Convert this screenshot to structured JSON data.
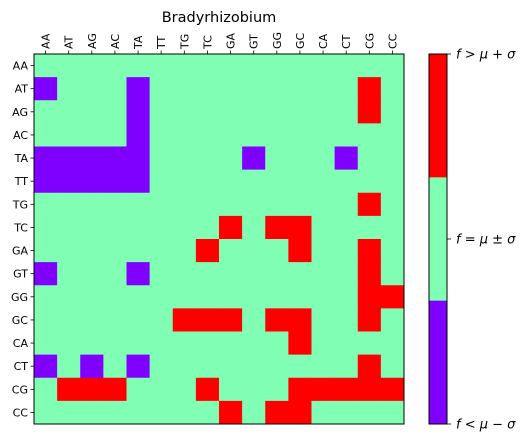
{
  "chart_data": {
    "type": "heatmap",
    "title": "Bradyrhizobium",
    "x_categories": [
      "AA",
      "AT",
      "AG",
      "AC",
      "TA",
      "TT",
      "TG",
      "TC",
      "GA",
      "GT",
      "GG",
      "GC",
      "CA",
      "CT",
      "CG",
      "CC"
    ],
    "y_categories": [
      "AA",
      "AT",
      "AG",
      "AC",
      "TA",
      "TT",
      "TG",
      "TC",
      "GA",
      "GT",
      "GG",
      "GC",
      "CA",
      "CT",
      "CG",
      "CC"
    ],
    "value_levels": [
      -1,
      0,
      1
    ],
    "colors": {
      "-1": "#8000ff",
      "0": "#80ffb4",
      "1": "#ff0000"
    },
    "colorbar": {
      "labels": [
        "f > μ + σ",
        "f = μ ± σ",
        "f < μ − σ"
      ],
      "levels": [
        1,
        0,
        -1
      ]
    },
    "matrix": [
      [
        0,
        0,
        0,
        0,
        0,
        0,
        0,
        0,
        0,
        0,
        0,
        0,
        0,
        0,
        0,
        0
      ],
      [
        -1,
        0,
        0,
        0,
        -1,
        0,
        0,
        0,
        0,
        0,
        0,
        0,
        0,
        0,
        1,
        0
      ],
      [
        0,
        0,
        0,
        0,
        -1,
        0,
        0,
        0,
        0,
        0,
        0,
        0,
        0,
        0,
        1,
        0
      ],
      [
        0,
        0,
        0,
        0,
        -1,
        0,
        0,
        0,
        0,
        0,
        0,
        0,
        0,
        0,
        0,
        0
      ],
      [
        -1,
        -1,
        -1,
        -1,
        -1,
        0,
        0,
        0,
        0,
        -1,
        0,
        0,
        0,
        -1,
        0,
        0
      ],
      [
        -1,
        -1,
        -1,
        -1,
        -1,
        0,
        0,
        0,
        0,
        0,
        0,
        0,
        0,
        0,
        0,
        0
      ],
      [
        0,
        0,
        0,
        0,
        0,
        0,
        0,
        0,
        0,
        0,
        0,
        0,
        0,
        0,
        1,
        0
      ],
      [
        0,
        0,
        0,
        0,
        0,
        0,
        0,
        0,
        1,
        0,
        1,
        1,
        0,
        0,
        0,
        0
      ],
      [
        0,
        0,
        0,
        0,
        0,
        0,
        0,
        1,
        0,
        0,
        0,
        1,
        0,
        0,
        1,
        0
      ],
      [
        -1,
        0,
        0,
        0,
        -1,
        0,
        0,
        0,
        0,
        0,
        0,
        0,
        0,
        0,
        1,
        0
      ],
      [
        0,
        0,
        0,
        0,
        0,
        0,
        0,
        0,
        0,
        0,
        0,
        0,
        0,
        0,
        1,
        1
      ],
      [
        0,
        0,
        0,
        0,
        0,
        0,
        1,
        1,
        1,
        0,
        1,
        1,
        0,
        0,
        1,
        0
      ],
      [
        0,
        0,
        0,
        0,
        0,
        0,
        0,
        0,
        0,
        0,
        0,
        1,
        0,
        0,
        0,
        0
      ],
      [
        -1,
        0,
        -1,
        0,
        -1,
        0,
        0,
        0,
        0,
        0,
        0,
        0,
        0,
        0,
        1,
        0
      ],
      [
        0,
        1,
        1,
        1,
        0,
        0,
        0,
        1,
        0,
        0,
        0,
        1,
        1,
        1,
        1,
        1
      ],
      [
        0,
        0,
        0,
        0,
        0,
        0,
        0,
        0,
        1,
        0,
        1,
        1,
        0,
        0,
        0,
        0
      ]
    ]
  }
}
